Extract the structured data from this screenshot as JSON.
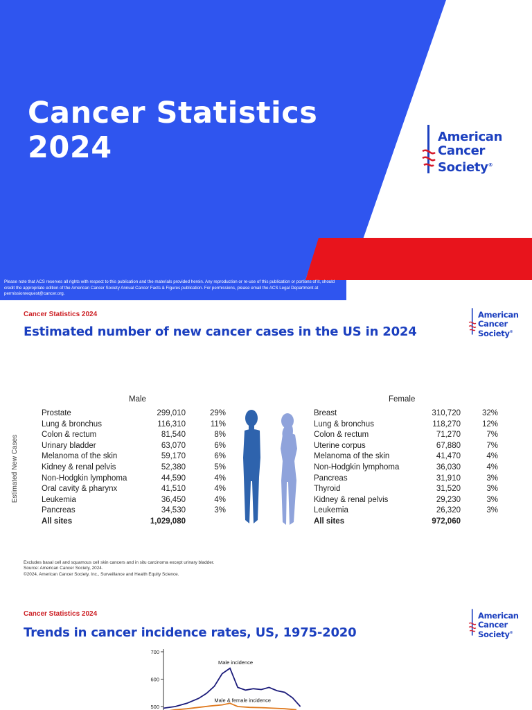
{
  "title_slide": {
    "title_line1": "Cancer Statistics",
    "title_line2": "2024",
    "disclaimer": "Please note that ACS reserves all rights with respect to this publication and the materials provided herein. Any reproduction or re-use of this publication or portions of it, should credit the appropriate edition of the American Cancer Society Annual Cancer Facts & Figures publication. For permissions, please email the ACS Legal Department at permissionrequest@cancer.org.",
    "colors": {
      "blue": "#2f55ef",
      "red": "#e8141c"
    }
  },
  "logo": {
    "line1": "American",
    "line2": "Cancer",
    "line3": "Society",
    "registered": "®",
    "accent_blue": "#1b3fbf",
    "accent_red": "#d6192a"
  },
  "cases_slide": {
    "kicker": "Cancer Statistics 2024",
    "heading": "Estimated number of new cancer cases in the US in 2024",
    "y_label": "Estimated New Cases",
    "male": {
      "header": "Male",
      "rows": [
        {
          "site": "Prostate",
          "cases": "299,010",
          "pct": "29%"
        },
        {
          "site": "Lung & bronchus",
          "cases": "116,310",
          "pct": "11%"
        },
        {
          "site": "Colon & rectum",
          "cases": "81,540",
          "pct": "8%"
        },
        {
          "site": "Urinary bladder",
          "cases": "63,070",
          "pct": "6%"
        },
        {
          "site": "Melanoma of the skin",
          "cases": "59,170",
          "pct": "6%"
        },
        {
          "site": "Kidney & renal pelvis",
          "cases": "52,380",
          "pct": "5%"
        },
        {
          "site": "Non-Hodgkin lymphoma",
          "cases": "44,590",
          "pct": "4%"
        },
        {
          "site": "Oral cavity & pharynx",
          "cases": "41,510",
          "pct": "4%"
        },
        {
          "site": "Leukemia",
          "cases": "36,450",
          "pct": "4%"
        },
        {
          "site": "Pancreas",
          "cases": "34,530",
          "pct": "3%"
        }
      ],
      "total": {
        "site": "All sites",
        "cases": "1,029,080"
      }
    },
    "female": {
      "header": "Female",
      "rows": [
        {
          "site": "Breast",
          "cases": "310,720",
          "pct": "32%"
        },
        {
          "site": "Lung & bronchus",
          "cases": "118,270",
          "pct": "12%"
        },
        {
          "site": "Colon & rectum",
          "cases": "71,270",
          "pct": "7%"
        },
        {
          "site": "Uterine corpus",
          "cases": "67,880",
          "pct": "7%"
        },
        {
          "site": "Melanoma of the skin",
          "cases": "41,470",
          "pct": "4%"
        },
        {
          "site": "Non-Hodgkin lymphoma",
          "cases": "36,030",
          "pct": "4%"
        },
        {
          "site": "Pancreas",
          "cases": "31,910",
          "pct": "3%"
        },
        {
          "site": "Thyroid",
          "cases": "31,520",
          "pct": "3%"
        },
        {
          "site": "Kidney & renal pelvis",
          "cases": "29,230",
          "pct": "3%"
        },
        {
          "site": "Leukemia",
          "cases": "26,320",
          "pct": "3%"
        }
      ],
      "total": {
        "site": "All sites",
        "cases": "972,060"
      }
    },
    "figure_colors": {
      "male": "#2e63ad",
      "female": "#8fa3db"
    },
    "notes": [
      "Excludes basal cell and squamous cell skin cancers and in situ carcinoma except urinary bladder.",
      "Source: American Cancer Society, 2024.",
      "©2024, American Cancer Society, Inc., Surveillance and Health Equity Science."
    ]
  },
  "trends_slide": {
    "kicker": "Cancer Statistics 2024",
    "heading": "Trends in cancer incidence rates, US, 1975-2020",
    "chart_data": {
      "type": "line",
      "y_ticks": [
        "700",
        "600",
        "500"
      ],
      "ylim": [
        480,
        700
      ],
      "grid": false,
      "annotations": [
        "Male incidence",
        "Male & female incidence"
      ],
      "series": [
        {
          "name": "Male incidence",
          "x": [
            1975,
            1978,
            1981,
            1984,
            1986,
            1988,
            1990,
            1992,
            1994,
            1996,
            1998,
            2000,
            2002,
            2004,
            2006,
            2008,
            2010
          ],
          "values": [
            494,
            500,
            512,
            530,
            548,
            574,
            620,
            640,
            570,
            560,
            565,
            562,
            570,
            558,
            552,
            532,
            500
          ]
        },
        {
          "name": "Male & female incidence",
          "x": [
            1975,
            1978,
            1981,
            1984,
            1987,
            1990,
            1992,
            1994,
            1997,
            2000,
            2003,
            2006,
            2009
          ],
          "values": [
            482,
            488,
            492,
            497,
            502,
            506,
            512,
            500,
            497,
            496,
            494,
            492,
            488
          ]
        }
      ],
      "colors": {
        "male": "#1b1b7a",
        "combined": "#e07a1f"
      }
    }
  }
}
